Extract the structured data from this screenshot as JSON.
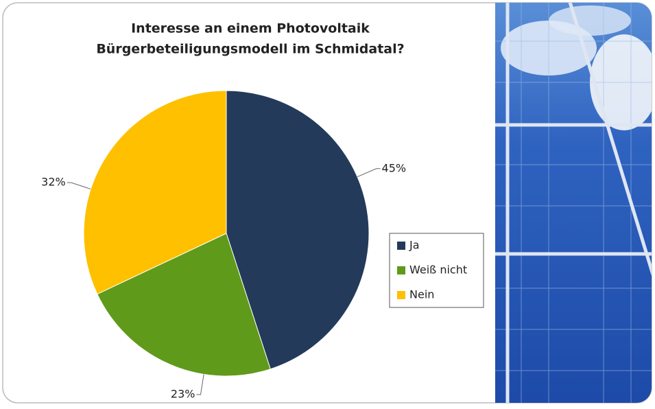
{
  "chart_data": {
    "type": "pie",
    "title": [
      "Interesse an einem Photovoltaik",
      "Bürgerbeteiligungsmodell im Schmidatal?"
    ],
    "categories": [
      "Ja",
      "Weiß nicht",
      "Nein"
    ],
    "values": [
      45,
      23,
      32
    ],
    "value_labels": [
      "45%",
      "23%",
      "32%"
    ],
    "colors": [
      "#243a5a",
      "#5f9a1a",
      "#ffc000"
    ],
    "legend": "right"
  }
}
